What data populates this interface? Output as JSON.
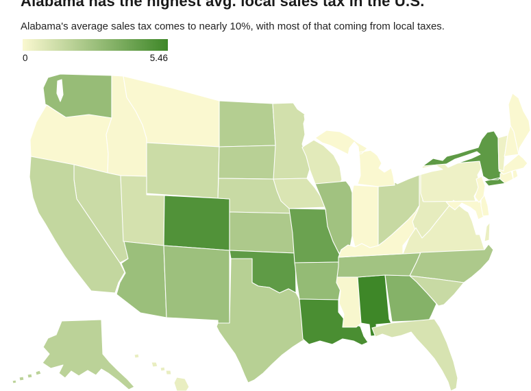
{
  "header": {
    "title": "Alabama has the highest avg. local sales tax in the U.S.",
    "subtitle": "Alabama's average sales tax comes to nearly 10%, with most of that coming from local taxes."
  },
  "legend": {
    "min_label": "0",
    "max_label": "5.46",
    "min_color": "#faf8d0",
    "max_color": "#3e8728"
  },
  "chart_data": {
    "type": "heatmap",
    "subtype": "us-choropleth",
    "title": "Alabama has the highest avg. local sales tax in the U.S.",
    "subtitle": "Alabama's average sales tax comes to nearly 10%, with most of that coming from local taxes.",
    "legend_position": "top-left",
    "scale": {
      "min": 0,
      "max": 5.46,
      "min_color": "#faf8d0",
      "max_color": "#3e8728"
    },
    "states": {
      "AL": {
        "name": "Alabama",
        "value": 5.46
      },
      "LA": {
        "name": "Louisiana",
        "value": 5.12
      },
      "CO": {
        "name": "Colorado",
        "value": 4.91
      },
      "NY": {
        "name": "New York",
        "value": 4.53
      },
      "OK": {
        "name": "Oklahoma",
        "value": 4.49
      },
      "MO": {
        "name": "Missouri",
        "value": 4.16
      },
      "GA": {
        "name": "Georgia",
        "value": 3.39
      },
      "AR": {
        "name": "Arkansas",
        "value": 2.95
      },
      "WA": {
        "name": "Washington",
        "value": 2.88
      },
      "AZ": {
        "name": "Arizona",
        "value": 2.77
      },
      "NM": {
        "name": "New Mexico",
        "value": 2.69
      },
      "IL": {
        "name": "Illinois",
        "value": 2.59
      },
      "TN": {
        "name": "Tennessee",
        "value": 2.55
      },
      "KS": {
        "name": "Kansas",
        "value": 2.25
      },
      "NC": {
        "name": "North Carolina",
        "value": 2.25
      },
      "ND": {
        "name": "North Dakota",
        "value": 2.04
      },
      "TX": {
        "name": "Texas",
        "value": 1.95
      },
      "SD": {
        "name": "South Dakota",
        "value": 1.91
      },
      "AK": {
        "name": "Alaska",
        "value": 1.82
      },
      "CA": {
        "name": "California",
        "value": 1.6
      },
      "OH": {
        "name": "Ohio",
        "value": 1.48
      },
      "NE": {
        "name": "Nebraska",
        "value": 1.44
      },
      "SC": {
        "name": "South Carolina",
        "value": 1.44
      },
      "NV": {
        "name": "Nevada",
        "value": 1.38
      },
      "WY": {
        "name": "Wyoming",
        "value": 1.36
      },
      "MN": {
        "name": "Minnesota",
        "value": 1.16
      },
      "UT": {
        "name": "Utah",
        "value": 1.09
      },
      "FL": {
        "name": "Florida",
        "value": 1.02
      },
      "IA": {
        "name": "Iowa",
        "value": 0.94
      },
      "WI": {
        "name": "Wisconsin",
        "value": 0.7
      },
      "WV": {
        "name": "West Virginia",
        "value": 0.57
      },
      "HI": {
        "name": "Hawaii",
        "value": 0.5
      },
      "VA": {
        "name": "Virginia",
        "value": 0.45
      },
      "VT": {
        "name": "Vermont",
        "value": 0.36
      },
      "PA": {
        "name": "Pennsylvania",
        "value": 0.34
      },
      "MS": {
        "name": "Mississippi",
        "value": 0.07
      },
      "ID": {
        "name": "Idaho",
        "value": 0.03
      },
      "MT": {
        "name": "Montana",
        "value": 0
      },
      "OR": {
        "name": "Oregon",
        "value": 0
      },
      "MI": {
        "name": "Michigan",
        "value": 0
      },
      "IN": {
        "name": "Indiana",
        "value": 0
      },
      "KY": {
        "name": "Kentucky",
        "value": 0
      },
      "ME": {
        "name": "Maine",
        "value": 0
      },
      "NH": {
        "name": "New Hampshire",
        "value": 0
      },
      "MA": {
        "name": "Massachusetts",
        "value": 0
      },
      "RI": {
        "name": "Rhode Island",
        "value": 0
      },
      "CT": {
        "name": "Connecticut",
        "value": 0
      },
      "NJ": {
        "name": "New Jersey",
        "value": 0
      },
      "DE": {
        "name": "Delaware",
        "value": 0
      },
      "MD": {
        "name": "Maryland",
        "value": 0
      }
    }
  }
}
